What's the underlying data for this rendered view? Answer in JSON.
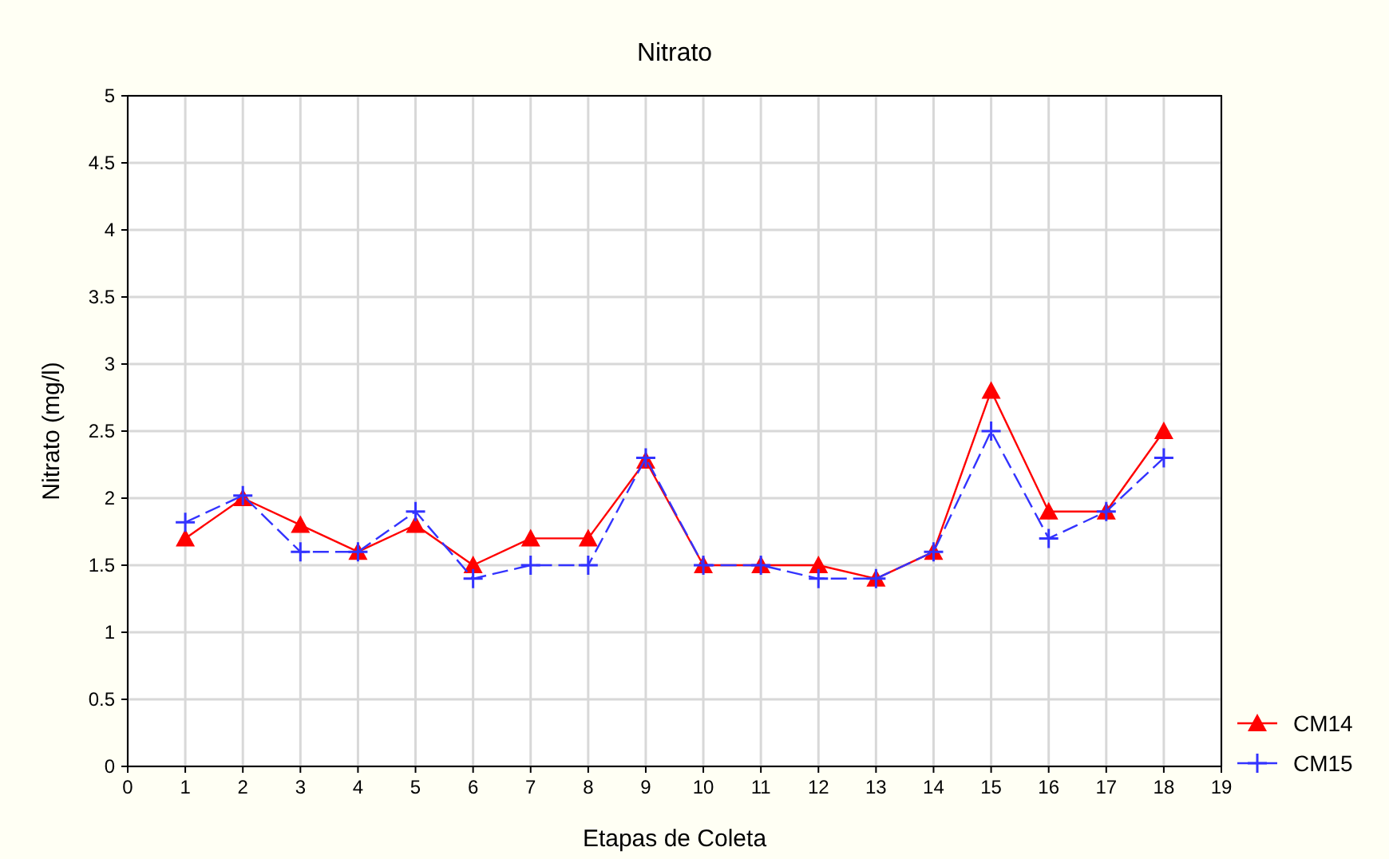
{
  "chart_data": {
    "type": "line",
    "title": "Nitrato",
    "xlabel": "Etapas de Coleta",
    "ylabel": "Nitrato (mg/l)",
    "x": [
      1,
      2,
      3,
      4,
      5,
      6,
      7,
      8,
      9,
      10,
      11,
      12,
      13,
      14,
      15,
      16,
      17,
      18
    ],
    "series": [
      {
        "name": "CM14",
        "color": "#ff0000",
        "marker": "triangle",
        "line_style": "solid",
        "values": [
          1.7,
          2.0,
          1.8,
          1.6,
          1.8,
          1.5,
          1.7,
          1.7,
          2.28,
          1.5,
          1.5,
          1.5,
          1.4,
          1.6,
          2.8,
          1.9,
          1.9,
          2.5
        ]
      },
      {
        "name": "CM15",
        "color": "#3333ff",
        "marker": "cross",
        "line_style": "dashed",
        "values": [
          1.82,
          2.02,
          1.6,
          1.6,
          1.9,
          1.4,
          1.5,
          1.5,
          2.3,
          1.5,
          1.5,
          1.4,
          1.4,
          1.6,
          2.5,
          1.7,
          1.9,
          2.3
        ]
      }
    ],
    "xlim": [
      0,
      19
    ],
    "xticks": [
      0,
      1,
      2,
      3,
      4,
      5,
      6,
      7,
      8,
      9,
      10,
      11,
      12,
      13,
      14,
      15,
      16,
      17,
      18,
      19
    ],
    "ylim": [
      0,
      5
    ],
    "yticks": [
      0,
      0.5,
      1,
      1.5,
      2,
      2.5,
      3,
      3.5,
      4,
      4.5,
      5
    ],
    "grid": true,
    "legend": "bottom right"
  }
}
